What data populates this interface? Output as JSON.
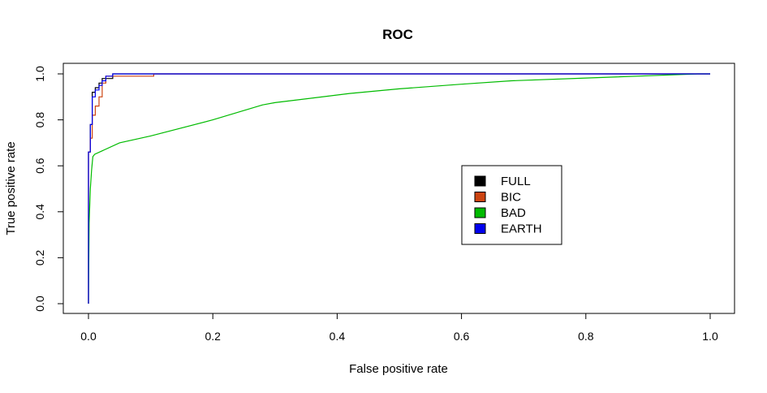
{
  "chart_data": {
    "type": "line",
    "title": "ROC",
    "xlabel": "False positive rate",
    "ylabel": "True positive rate",
    "xlim": [
      0,
      1
    ],
    "ylim": [
      0,
      1
    ],
    "x_ticks": [
      "0.0",
      "0.2",
      "0.4",
      "0.6",
      "0.8",
      "1.0"
    ],
    "y_ticks": [
      "0.0",
      "0.2",
      "0.4",
      "0.6",
      "0.8",
      "1.0"
    ],
    "grid": false,
    "legend_position": "center-right",
    "series": [
      {
        "name": "FULL",
        "color": "#000000",
        "x": [
          0,
          0,
          0.003,
          0.003,
          0.006,
          0.006,
          0.011,
          0.011,
          0.017,
          0.017,
          0.022,
          0.022,
          0.028,
          0.028,
          0.039,
          0.039,
          0.05,
          0.05,
          1
        ],
        "y": [
          0,
          0.66,
          0.66,
          0.78,
          0.78,
          0.92,
          0.92,
          0.94,
          0.94,
          0.96,
          0.96,
          0.98,
          0.98,
          0.98,
          0.98,
          1,
          1,
          1,
          1
        ]
      },
      {
        "name": "BIC",
        "color": "#cc4411",
        "x": [
          0,
          0,
          0.003,
          0.003,
          0.006,
          0.006,
          0.011,
          0.011,
          0.017,
          0.017,
          0.022,
          0.022,
          0.028,
          0.028,
          0.105,
          0.105,
          1
        ],
        "y": [
          0,
          0.66,
          0.66,
          0.72,
          0.72,
          0.82,
          0.82,
          0.86,
          0.86,
          0.9,
          0.9,
          0.96,
          0.96,
          0.99,
          0.99,
          1,
          1
        ]
      },
      {
        "name": "BAD",
        "color": "#00bb00",
        "x": [
          0,
          0.001,
          0.003,
          0.005,
          0.007,
          0.01,
          0.05,
          0.1,
          0.2,
          0.28,
          0.3,
          0.42,
          0.5,
          0.6,
          0.68,
          0.8,
          0.9,
          0.98,
          1
        ],
        "y": [
          0,
          0.35,
          0.5,
          0.58,
          0.64,
          0.65,
          0.7,
          0.73,
          0.8,
          0.865,
          0.875,
          0.915,
          0.935,
          0.955,
          0.97,
          0.982,
          0.992,
          1,
          1
        ]
      },
      {
        "name": "EARTH",
        "color": "#0000ee",
        "x": [
          0,
          0,
          0.003,
          0.003,
          0.006,
          0.006,
          0.011,
          0.011,
          0.017,
          0.017,
          0.022,
          0.022,
          0.028,
          0.028,
          0.039,
          0.039,
          1
        ],
        "y": [
          0,
          0.66,
          0.66,
          0.78,
          0.78,
          0.9,
          0.9,
          0.93,
          0.93,
          0.95,
          0.95,
          0.97,
          0.97,
          0.99,
          0.99,
          1,
          1
        ]
      }
    ]
  }
}
